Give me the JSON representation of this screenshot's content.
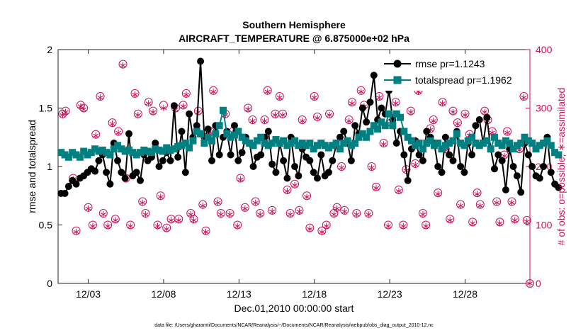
{
  "chart_data": {
    "type": "line",
    "title": "Southern Hemisphere",
    "subtitle": "AIRCRAFT_TEMPERATURE @ 6.875000e+02 hPa",
    "xlabel": "Dec.01,2010 00:00:00 start",
    "ylabel": "rmse and totalspread",
    "y2label": "# of obs: o=possible; ∗=assimilated",
    "footnote": "data file: /Users/gharamti/Documents/NCAR/Reanalysis/~/Documents/NCAR/Reanalysis/webpub/obs_diag_output_2010-12.nc",
    "xlim": [
      1,
      32.3
    ],
    "ylim": [
      0,
      2
    ],
    "y2lim": [
      0,
      400
    ],
    "xticks": [
      3,
      8,
      13,
      18,
      23,
      28
    ],
    "xtick_labels": [
      "12/03",
      "12/08",
      "12/13",
      "12/18",
      "12/23",
      "12/28"
    ],
    "yticks": [
      0,
      0.5,
      1,
      1.5,
      2
    ],
    "ytick_labels": [
      "0",
      "0.5",
      "1",
      "1.5",
      "2"
    ],
    "y2ticks": [
      0,
      100,
      200,
      300,
      400
    ],
    "y2tick_labels": [
      "0",
      "100",
      "200",
      "300",
      "400"
    ],
    "legend_position": "top-right",
    "x_start": 1.2,
    "x_step": 0.25,
    "series": [
      {
        "name": "rmse pr=1.1243",
        "color": "#000000",
        "marker": "circle",
        "values": [
          0.77,
          0.77,
          0.83,
          0.88,
          0.85,
          0.9,
          0.92,
          0.95,
          0.98,
          0.96,
          1.05,
          1.1,
          0.95,
          0.85,
          1.2,
          1.05,
          0.95,
          0.9,
          1.28,
          0.92,
          0.95,
          0.88,
          1.1,
          1.05,
          1.08,
          1.2,
          1.0,
          1.05,
          1.12,
          1.05,
          1.52,
          1.08,
          1.3,
          0.95,
          1.45,
          1.25,
          1.35,
          1.9,
          1.25,
          1.32,
          1.05,
          1.35,
          1.1,
          1.25,
          1.3,
          1.1,
          1.35,
          1.05,
          1.12,
          1.25,
          1.2,
          1.0,
          1.08,
          1.1,
          1.25,
          1.3,
          1.02,
          0.95,
          1.2,
          1.05,
          0.9,
          1.25,
          1.0,
          0.92,
          1.15,
          1.08,
          1.05,
          0.95,
          0.9,
          1.1,
          0.92,
          0.95,
          1.05,
          1.18,
          1.25,
          1.3,
          1.2,
          1.05,
          1.35,
          1.28,
          1.5,
          1.38,
          1.55,
          1.78,
          1.4,
          1.5,
          1.45,
          1.65,
          1.4,
          1.2,
          1.3,
          1.1,
          0.88,
          1.15,
          1.22,
          1.1,
          1.05,
          1.3,
          1.25,
          1.2,
          1.0,
          0.95,
          1.25,
          1.1,
          1.05,
          1.3,
          1.0,
          0.95,
          1.2,
          1.1,
          1.35,
          1.4,
          1.2,
          1.42,
          1.15,
          0.98,
          1.1,
          1.05,
          0.8,
          1.15,
          1.0,
          0.92,
          0.78,
          1.2,
          1.1,
          1.0,
          0.92,
          0.9,
          1.0,
          1.25,
          0.95,
          0.85,
          0.82
        ]
      },
      {
        "name": "totalspread pr=1.1962",
        "color": "#008080",
        "marker": "square",
        "values": [
          1.12,
          1.1,
          1.08,
          1.12,
          1.1,
          1.08,
          1.13,
          1.1,
          1.12,
          1.15,
          1.13,
          1.14,
          1.12,
          1.1,
          1.15,
          1.18,
          1.15,
          1.13,
          1.14,
          1.12,
          1.1,
          1.12,
          1.14,
          1.13,
          1.12,
          1.15,
          1.14,
          1.13,
          1.16,
          1.14,
          1.15,
          1.17,
          1.18,
          1.2,
          1.16,
          1.22,
          1.3,
          1.28,
          1.2,
          1.25,
          1.22,
          1.28,
          1.35,
          1.48,
          1.28,
          1.25,
          1.27,
          1.3,
          1.25,
          1.22,
          1.2,
          1.18,
          1.22,
          1.25,
          1.2,
          1.18,
          1.2,
          1.23,
          1.2,
          1.22,
          1.18,
          1.2,
          1.22,
          1.18,
          1.2,
          1.18,
          1.2,
          1.15,
          1.18,
          1.2,
          1.18,
          1.16,
          1.18,
          1.2,
          1.15,
          1.2,
          1.22,
          1.18,
          1.2,
          1.25,
          1.28,
          1.25,
          1.3,
          1.35,
          1.32,
          1.38,
          1.35,
          1.45,
          1.35,
          1.45,
          1.42,
          1.3,
          1.25,
          1.22,
          1.18,
          1.2,
          1.15,
          1.2,
          1.22,
          1.18,
          1.2,
          1.15,
          1.18,
          1.2,
          1.22,
          1.28,
          1.2,
          1.18,
          1.22,
          1.25,
          1.2,
          1.18,
          1.2,
          1.22,
          1.15,
          1.25,
          1.2,
          1.18,
          1.22,
          1.2,
          1.15,
          1.18,
          1.2,
          1.25,
          1.22,
          1.2,
          1.15,
          1.18,
          1.2,
          1.22,
          1.18,
          1.12,
          1.1
        ]
      },
      {
        "name": "# of obs possible",
        "color": "#cc0f5a",
        "marker": "open-circle",
        "axis": "right",
        "x": [
          1.3,
          1.5,
          2.0,
          2.2,
          2.5,
          2.7,
          3.0,
          3.3,
          3.5,
          3.8,
          4.0,
          4.3,
          4.6,
          4.8,
          5.0,
          5.3,
          5.5,
          5.8,
          6.1,
          6.3,
          6.6,
          6.8,
          7.0,
          7.3,
          7.6,
          7.8,
          8.0,
          8.2,
          8.5,
          8.8,
          9.0,
          9.3,
          9.5,
          9.8,
          10.0,
          10.3,
          10.6,
          10.8,
          11.1,
          11.3,
          11.6,
          11.8,
          12.1,
          12.4,
          12.6,
          12.9,
          13.1,
          13.4,
          13.6,
          13.9,
          14.1,
          14.4,
          14.7,
          14.9,
          15.2,
          15.4,
          15.7,
          15.9,
          16.2,
          16.4,
          16.7,
          17.0,
          17.2,
          17.5,
          17.7,
          18.0,
          18.2,
          18.5,
          18.8,
          19.0,
          19.3,
          19.5,
          19.8,
          20.0,
          20.3,
          20.5,
          20.8,
          21.1,
          21.3,
          21.6,
          21.8,
          22.1,
          22.3,
          22.6,
          22.9,
          23.1,
          23.4,
          23.6,
          23.9,
          24.1,
          24.4,
          24.7,
          24.9,
          25.2,
          25.4,
          25.7,
          25.9,
          26.2,
          26.5,
          26.7,
          27.0,
          27.2,
          27.5,
          27.7,
          28.0,
          28.3,
          28.5,
          28.8,
          29.0,
          29.3,
          29.5,
          29.8,
          30.1,
          30.3,
          30.6,
          30.8,
          31.1,
          31.3,
          31.6,
          31.9,
          32.1,
          32.3
        ],
        "values": [
          290,
          295,
          180,
          90,
          305,
          300,
          130,
          100,
          255,
          320,
          120,
          100,
          275,
          110,
          260,
          375,
          180,
          100,
          325,
          290,
          140,
          120,
          310,
          295,
          100,
          150,
          305,
          95,
          110,
          300,
          110,
          305,
          325,
          120,
          110,
          295,
          135,
          90,
          260,
          330,
          140,
          120,
          290,
          120,
          260,
          100,
          180,
          130,
          300,
          280,
          140,
          120,
          280,
          330,
          125,
          290,
          320,
          290,
          160,
          120,
          170,
          125,
          280,
          150,
          95,
          320,
          285,
          90,
          100,
          290,
          120,
          130,
          200,
          125,
          280,
          310,
          120,
          330,
          305,
          120,
          200,
          165,
          320,
          240,
          100,
          275,
          310,
          160,
          100,
          195,
          295,
          205,
          330,
          120,
          100,
          265,
          280,
          155,
          310,
          230,
          110,
          295,
          275,
          135,
          290,
          255,
          105,
          155,
          135,
          295,
          280,
          260,
          140,
          105,
          220,
          260,
          140,
          110,
          230,
          320,
          108,
          0
        ]
      },
      {
        "name": "# of obs assimilated",
        "color": "#cc0f5a",
        "marker": "asterisk",
        "axis": "right",
        "x": [
          1.3,
          1.5,
          2.0,
          2.2,
          2.5,
          2.7,
          3.0,
          3.3,
          3.5,
          3.8,
          4.0,
          4.3,
          4.6,
          4.8,
          5.0,
          5.3,
          5.5,
          5.8,
          6.1,
          6.3,
          6.6,
          6.8,
          7.0,
          7.3,
          7.6,
          7.8,
          8.0,
          8.2,
          8.5,
          8.8,
          9.0,
          9.3,
          9.5,
          9.8,
          10.0,
          10.3,
          10.6,
          10.8,
          11.1,
          11.3,
          11.6,
          11.8,
          12.1,
          12.4,
          12.6,
          12.9,
          13.1,
          13.4,
          13.6,
          13.9,
          14.1,
          14.4,
          14.7,
          14.9,
          15.2,
          15.4,
          15.7,
          15.9,
          16.2,
          16.4,
          16.7,
          17.0,
          17.2,
          17.5,
          17.7,
          18.0,
          18.2,
          18.5,
          18.8,
          19.0,
          19.3,
          19.5,
          19.8,
          20.0,
          20.3,
          20.5,
          20.8,
          21.1,
          21.3,
          21.6,
          21.8,
          22.1,
          22.3,
          22.6,
          22.9,
          23.1,
          23.4,
          23.6,
          23.9,
          24.1,
          24.4,
          24.7,
          24.9,
          25.2,
          25.4,
          25.7,
          25.9,
          26.2,
          26.5,
          26.7,
          27.0,
          27.2,
          27.5,
          27.7,
          28.0,
          28.3,
          28.5,
          28.8,
          29.0,
          29.3,
          29.5,
          29.8,
          30.1,
          30.3,
          30.6,
          30.8,
          31.1,
          31.3,
          31.6,
          31.9,
          32.1,
          32.3
        ],
        "values": [
          288,
          293,
          178,
          88,
          303,
          298,
          128,
          98,
          253,
          318,
          118,
          98,
          273,
          108,
          258,
          373,
          178,
          98,
          323,
          288,
          138,
          118,
          308,
          293,
          98,
          148,
          300,
          93,
          108,
          298,
          108,
          303,
          323,
          118,
          108,
          293,
          133,
          88,
          258,
          328,
          138,
          118,
          288,
          118,
          258,
          98,
          178,
          128,
          298,
          278,
          138,
          118,
          278,
          328,
          123,
          288,
          318,
          288,
          158,
          118,
          168,
          123,
          278,
          148,
          93,
          318,
          283,
          88,
          98,
          288,
          118,
          128,
          198,
          123,
          278,
          308,
          118,
          328,
          303,
          118,
          198,
          163,
          318,
          238,
          98,
          273,
          308,
          158,
          98,
          193,
          293,
          203,
          328,
          118,
          98,
          263,
          278,
          153,
          308,
          228,
          108,
          293,
          273,
          133,
          288,
          253,
          103,
          153,
          133,
          293,
          278,
          258,
          138,
          103,
          218,
          258,
          138,
          108,
          228,
          318,
          106,
          0
        ]
      }
    ]
  }
}
